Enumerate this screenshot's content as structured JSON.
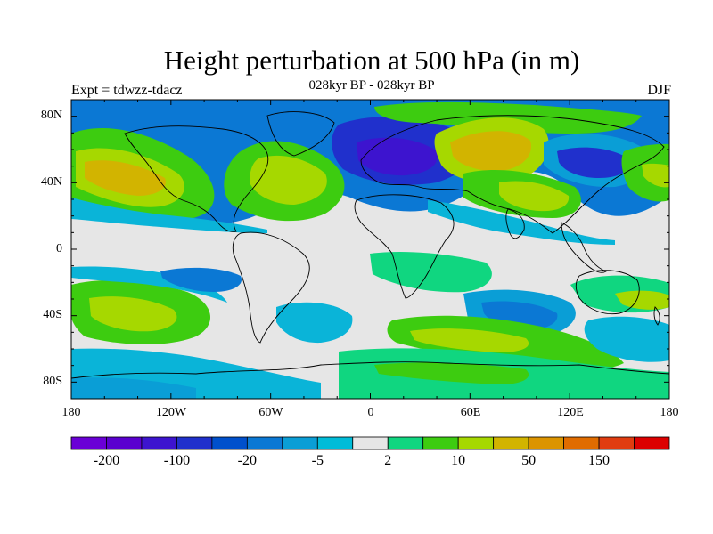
{
  "title": "Height perturbation at 500 hPa (in m)",
  "subtitle": "028kyr BP - 028kyr BP",
  "left_label": "Expt = tdwzz-tdacz",
  "right_label": "DJF",
  "lat_labels": [
    "80N",
    "40N",
    "0",
    "40S",
    "80S"
  ],
  "lon_labels": [
    "180",
    "120W",
    "60W",
    "0",
    "60E",
    "120E",
    "180"
  ],
  "colorbar": {
    "colors": [
      "#6a00d6",
      "#5a00cf",
      "#3d14cf",
      "#2030cc",
      "#0050cc",
      "#0b78d4",
      "#0a9ed6",
      "#00bcd8",
      "#e6e6e6",
      "#10d680",
      "#3dcc10",
      "#a6d800",
      "#d2b400",
      "#dc9400",
      "#e06c00",
      "#e03c10",
      "#dc0000"
    ],
    "labels": [
      "-200",
      "-100",
      "-20",
      "-5",
      "2",
      "10",
      "50",
      "150"
    ],
    "label_boundaries": [
      1,
      3,
      5,
      7,
      9,
      11,
      13,
      15
    ]
  },
  "map_fill_colors": {
    "background": "#e6e6e6",
    "light_blue": "#0ab4d8",
    "mid_blue": "#0a9ed6",
    "blue": "#0b78d4",
    "deep_blue": "#2030cc",
    "purple_blue": "#3d14cf",
    "green": "#10d680",
    "bright_green": "#3dcc10",
    "yellow_green": "#a6d800",
    "yellow": "#d2b400"
  }
}
